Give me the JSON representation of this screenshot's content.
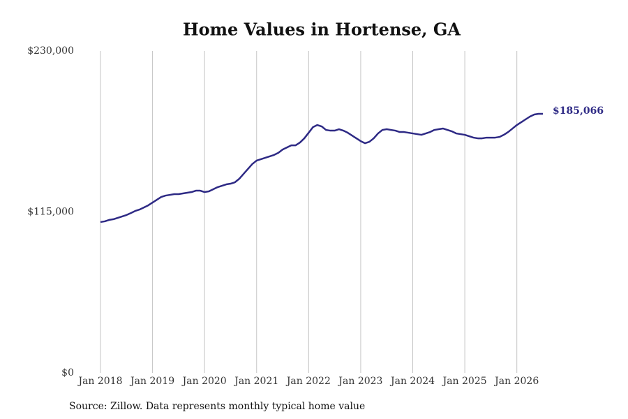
{
  "chart_data": {
    "type": "line",
    "title": "Home Values in Hortense, GA",
    "source": "Source: Zillow. Data represents monthly typical home value",
    "x": [
      "2018-01",
      "2018-02",
      "2018-03",
      "2018-04",
      "2018-05",
      "2018-06",
      "2018-07",
      "2018-08",
      "2018-09",
      "2018-10",
      "2018-11",
      "2018-12",
      "2019-01",
      "2019-02",
      "2019-03",
      "2019-04",
      "2019-05",
      "2019-06",
      "2019-07",
      "2019-08",
      "2019-09",
      "2019-10",
      "2019-11",
      "2019-12",
      "2020-01",
      "2020-02",
      "2020-03",
      "2020-04",
      "2020-05",
      "2020-06",
      "2020-07",
      "2020-08",
      "2020-09",
      "2020-10",
      "2020-11",
      "2020-12",
      "2021-01",
      "2021-02",
      "2021-03",
      "2021-04",
      "2021-05",
      "2021-06",
      "2021-07",
      "2021-08",
      "2021-09",
      "2021-10",
      "2021-11",
      "2021-12",
      "2022-01",
      "2022-02",
      "2022-03",
      "2022-04",
      "2022-05",
      "2022-06",
      "2022-07",
      "2022-08",
      "2022-09",
      "2022-10",
      "2022-11",
      "2022-12",
      "2023-01",
      "2023-02",
      "2023-03",
      "2023-04",
      "2023-05",
      "2023-06",
      "2023-07",
      "2023-08",
      "2023-09",
      "2023-10",
      "2023-11",
      "2023-12",
      "2024-01",
      "2024-02",
      "2024-03",
      "2024-04",
      "2024-05",
      "2024-06",
      "2024-07",
      "2024-08",
      "2024-09",
      "2024-10",
      "2024-11",
      "2024-12",
      "2025-01",
      "2025-02",
      "2025-03",
      "2025-04",
      "2025-05",
      "2025-06",
      "2025-07",
      "2025-08",
      "2025-09",
      "2025-10",
      "2025-11",
      "2025-12",
      "2026-01",
      "2026-02",
      "2026-03",
      "2026-04",
      "2026-05",
      "2026-06",
      "2026-07"
    ],
    "series": [
      {
        "color": "#2e2a85",
        "values": [
          107800,
          108300,
          109300,
          109800,
          110800,
          111800,
          112800,
          114200,
          115700,
          116700,
          118200,
          119700,
          121700,
          123700,
          125700,
          126700,
          127200,
          127700,
          127700,
          128200,
          128700,
          129200,
          130200,
          130200,
          129200,
          129700,
          131200,
          132700,
          133700,
          134700,
          135200,
          136200,
          138700,
          142200,
          145700,
          149200,
          151700,
          152700,
          153700,
          154700,
          155700,
          157200,
          159600,
          161100,
          162600,
          162600,
          164600,
          167600,
          171600,
          175600,
          177100,
          176100,
          173600,
          173100,
          173100,
          174100,
          173100,
          171600,
          169600,
          167600,
          165600,
          164100,
          165100,
          167600,
          171100,
          173600,
          174100,
          173600,
          173100,
          172100,
          172100,
          171600,
          171100,
          170600,
          170100,
          171100,
          172100,
          173600,
          174100,
          174600,
          173600,
          172600,
          171100,
          170600,
          170100,
          169100,
          168100,
          167600,
          167600,
          168100,
          168100,
          168100,
          168600,
          170100,
          172100,
          174600,
          177100,
          179100,
          181100,
          183100,
          184600,
          185100,
          185066
        ],
        "value_labels": [
          null,
          null,
          null,
          null,
          null,
          null,
          null,
          null,
          null,
          null,
          null,
          null,
          null,
          null,
          null,
          null,
          null,
          null,
          null,
          null,
          null,
          null,
          null,
          null,
          null,
          null,
          null,
          null,
          null,
          null,
          null,
          null,
          null,
          null,
          null,
          null,
          null,
          null,
          null,
          null,
          null,
          null,
          null,
          null,
          null,
          null,
          null,
          null,
          null,
          null,
          null,
          null,
          null,
          null,
          null,
          null,
          null,
          null,
          null,
          null,
          null,
          null,
          null,
          null,
          null,
          null,
          null,
          null,
          null,
          null,
          null,
          null,
          null,
          null,
          null,
          null,
          null,
          null,
          null,
          null,
          null,
          null,
          null,
          null,
          null,
          null,
          null,
          null,
          null,
          null,
          null,
          null,
          null,
          null,
          null,
          null,
          null,
          null,
          null,
          null,
          null,
          null,
          "$185,066"
        ]
      }
    ],
    "ylim": [
      0,
      230000
    ],
    "yticks": [
      {
        "value": 0,
        "label": "$0"
      },
      {
        "value": 115000,
        "label": "$115,000"
      },
      {
        "value": 230000,
        "label": "$230,000"
      }
    ],
    "xticks": [
      {
        "value": "2018-01",
        "label": "Jan 2018"
      },
      {
        "value": "2019-01",
        "label": "Jan 2019"
      },
      {
        "value": "2020-01",
        "label": "Jan 2020"
      },
      {
        "value": "2021-01",
        "label": "Jan 2021"
      },
      {
        "value": "2022-01",
        "label": "Jan 2022"
      },
      {
        "value": "2023-01",
        "label": "Jan 2023"
      },
      {
        "value": "2024-01",
        "label": "Jan 2024"
      },
      {
        "value": "2025-01",
        "label": "Jan 2025"
      },
      {
        "value": "2026-01",
        "label": "Jan 2026"
      }
    ],
    "grid": "x"
  }
}
